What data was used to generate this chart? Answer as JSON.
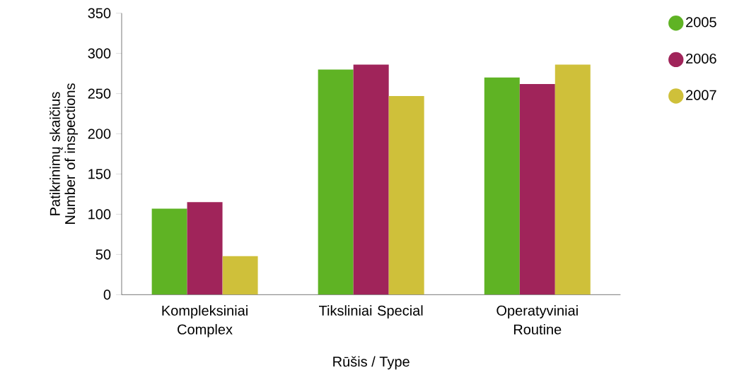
{
  "chart_data": {
    "type": "bar",
    "ylabel": "Patikrinimų skaičius Number of inspections",
    "xlabel": "Rūšis / Type",
    "categories": [
      "Kompleksiniai Complex",
      "Tiksliniai Special",
      "Operatyviniai Routine"
    ],
    "series": [
      {
        "name": "2005",
        "color": "#5fb324",
        "values": [
          107,
          280,
          270
        ]
      },
      {
        "name": "2006",
        "color": "#a0245a",
        "values": [
          115,
          286,
          262
        ]
      },
      {
        "name": "2007",
        "color": "#cfc03a",
        "values": [
          48,
          247,
          286
        ]
      }
    ],
    "ylim": [
      0,
      350
    ],
    "yticks": [
      0,
      50,
      100,
      150,
      200,
      250,
      300,
      350
    ],
    "legend": "top right"
  }
}
